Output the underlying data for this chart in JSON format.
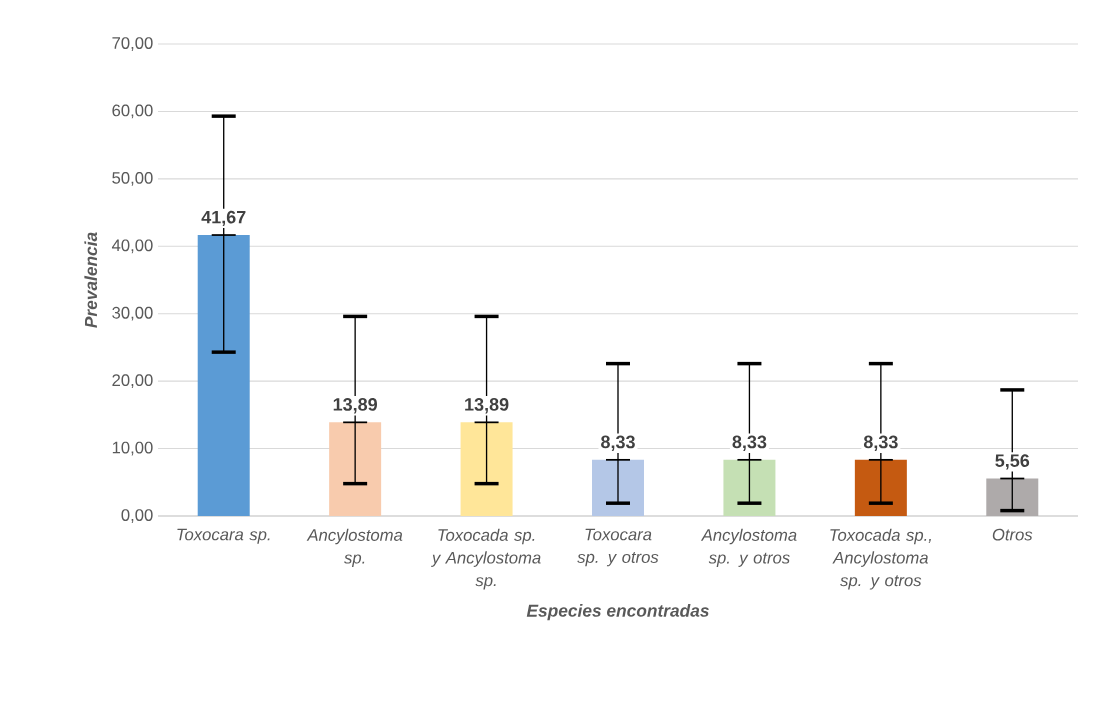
{
  "chart_data": {
    "type": "bar",
    "xlabel": "Especies  encontradas",
    "ylabel": "Prevalencia",
    "categories": [
      "Toxocara sp.",
      "Ancylostoma sp.",
      "Toxocada sp. y Ancylostoma sp.",
      "Toxocara sp. y otros",
      "Ancylostoma sp. y otros",
      "Toxocada sp., Ancylostoma sp. y otros",
      "Otros"
    ],
    "values": [
      41.67,
      13.89,
      13.89,
      8.33,
      8.33,
      8.33,
      5.56
    ],
    "value_labels": [
      "41,67",
      "13,89",
      "13,89",
      "8,33",
      "8,33",
      "8,33",
      "5,56"
    ],
    "colors": [
      "#5b9bd5",
      "#f8cbad",
      "#ffe699",
      "#b4c7e7",
      "#c5e0b4",
      "#c55a11",
      "#aeaaaa"
    ],
    "errors": [
      [
        24.3,
        59.3
      ],
      [
        4.8,
        29.6
      ],
      [
        4.8,
        29.6
      ],
      [
        1.9,
        22.6
      ],
      [
        1.9,
        22.6
      ],
      [
        1.9,
        22.6
      ],
      [
        0.8,
        18.7
      ]
    ],
    "ylim": [
      0,
      70
    ],
    "yticks": [
      {
        "value": 0,
        "label": "0,00"
      },
      {
        "value": 10,
        "label": "10,00"
      },
      {
        "value": 20,
        "label": "20,00"
      },
      {
        "value": 30,
        "label": "30,00"
      },
      {
        "value": 40,
        "label": "40,00"
      },
      {
        "value": 50,
        "label": "50,00"
      },
      {
        "value": 60,
        "label": "60,00"
      },
      {
        "value": 70,
        "label": "70,00"
      }
    ],
    "grid": "y"
  }
}
